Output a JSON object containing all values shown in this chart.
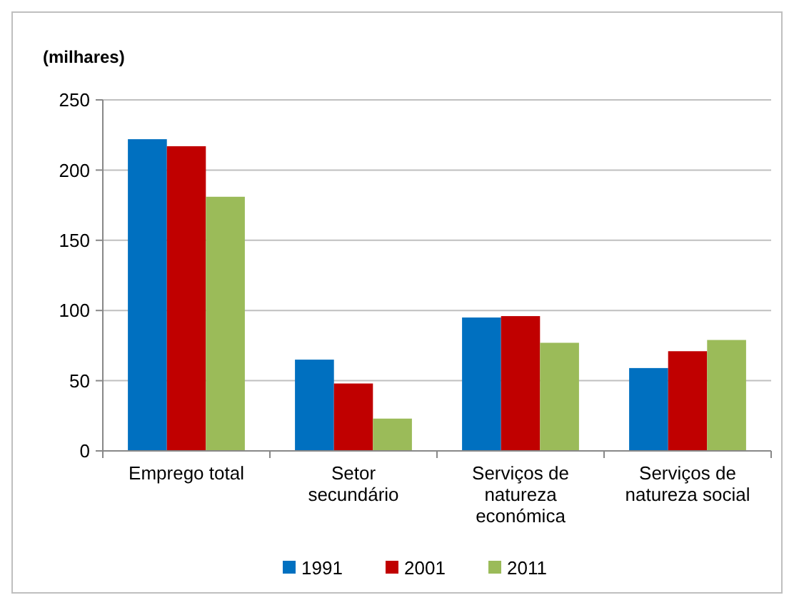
{
  "chart_data": {
    "type": "bar",
    "ylabel": "(milhares)",
    "categories": [
      "Emprego total",
      "Setor\nsecundário",
      "Serviços de\nnatureza\neconómica",
      "Serviços de\nnatureza social"
    ],
    "series": [
      {
        "name": "1991",
        "color": "#0070c0",
        "values": [
          222,
          65,
          95,
          59
        ]
      },
      {
        "name": "2001",
        "color": "#c00000",
        "values": [
          217,
          48,
          96,
          71
        ]
      },
      {
        "name": "2011",
        "color": "#9bbb59",
        "values": [
          181,
          23,
          77,
          79
        ]
      }
    ],
    "ylim": [
      0,
      250
    ],
    "yticks": [
      0,
      50,
      100,
      150,
      200,
      250
    ],
    "grid": "y",
    "legend": "bottom"
  }
}
